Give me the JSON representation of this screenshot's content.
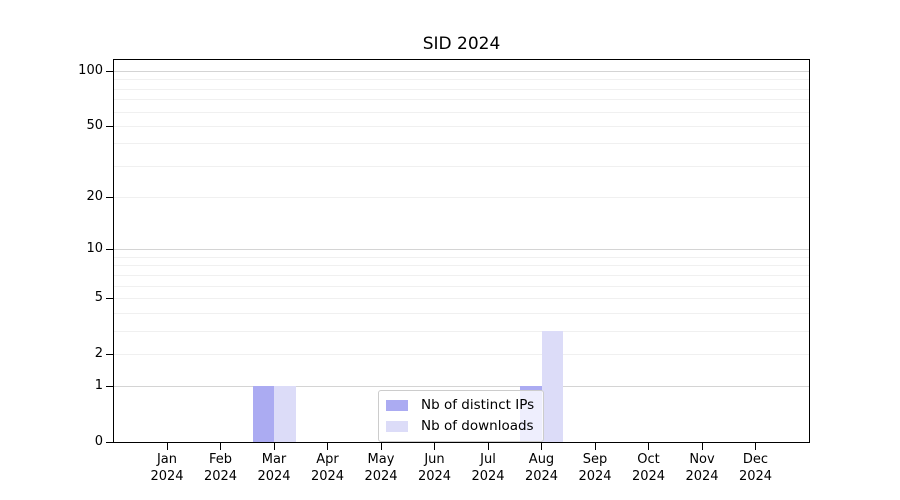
{
  "chart_data": {
    "type": "bar",
    "title": "SID 2024",
    "categories": [
      "Jan\n2024",
      "Feb\n2024",
      "Mar\n2024",
      "Apr\n2024",
      "May\n2024",
      "Jun\n2024",
      "Jul\n2024",
      "Aug\n2024",
      "Sep\n2024",
      "Oct\n2024",
      "Nov\n2024",
      "Dec\n2024"
    ],
    "series": [
      {
        "name": "Nb of distinct IPs",
        "color": "#ababf2",
        "values": [
          0,
          0,
          1,
          0,
          0,
          0,
          0,
          1,
          0,
          0,
          0,
          0
        ]
      },
      {
        "name": "Nb of downloads",
        "color": "#dcdcf8",
        "values": [
          0,
          0,
          1,
          0,
          0,
          0,
          0,
          3,
          0,
          0,
          0,
          0
        ]
      }
    ],
    "yscale": "log1p",
    "ylim": [
      0,
      114.7
    ],
    "y_ticks": [
      0,
      1,
      2,
      5,
      10,
      20,
      50,
      100
    ],
    "grid_major": [
      1,
      10,
      100
    ],
    "grid_minor": [
      2,
      3,
      4,
      5,
      6,
      7,
      8,
      9,
      20,
      30,
      40,
      50,
      60,
      70,
      80,
      90
    ],
    "grid": "on",
    "xlabel": "",
    "ylabel": "",
    "legend_position": "inside lower-center"
  }
}
